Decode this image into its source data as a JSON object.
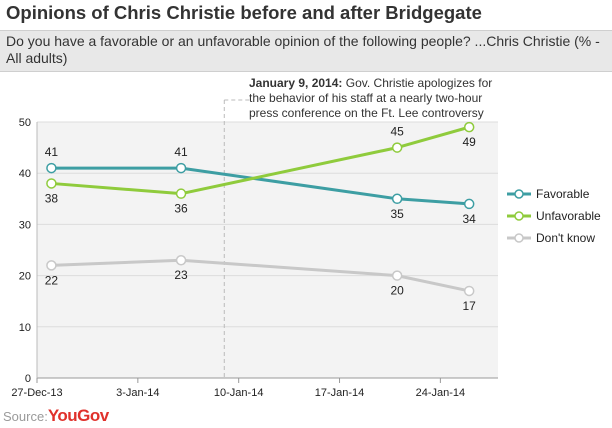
{
  "title": "Opinions of Chris Christie before and after Bridgegate",
  "subtitle": "Do you have a favorable or an unfavorable opinion of the following people? ...Chris Christie (% - All adults)",
  "source": {
    "label": "Source:",
    "brand": "YouGov"
  },
  "annotation": {
    "date": "January 9, 2014:",
    "text": "Gov. Christie apologizes for the behavior of his staff at a nearly two-hour press conference on the Ft. Lee controversy",
    "x": "2014-01-09"
  },
  "chart_data": {
    "type": "line",
    "x_dates": [
      "2013-12-28",
      "2014-01-06",
      "2014-01-21",
      "2014-01-26"
    ],
    "xticks": [
      {
        "label": "27-Dec-13",
        "date": "2013-12-27"
      },
      {
        "label": "3-Jan-14",
        "date": "2014-01-03"
      },
      {
        "label": "10-Jan-14",
        "date": "2014-01-10"
      },
      {
        "label": "17-Jan-14",
        "date": "2014-01-17"
      },
      {
        "label": "24-Jan-14",
        "date": "2014-01-24"
      }
    ],
    "ylim": [
      0,
      50
    ],
    "yticks": [
      0,
      10,
      20,
      30,
      40,
      50
    ],
    "grid": true,
    "legend_position": "right",
    "series": [
      {
        "name": "Favorable",
        "values": [
          41,
          41,
          35,
          34
        ],
        "color": "#3d9ea3",
        "label_pos": [
          "above",
          "above",
          "below",
          "below"
        ]
      },
      {
        "name": "Unfavorable",
        "values": [
          38,
          36,
          45,
          49
        ],
        "color": "#8fcb3c",
        "label_pos": [
          "below",
          "below",
          "above",
          "below"
        ]
      },
      {
        "name": "Don't know",
        "values": [
          22,
          23,
          20,
          17
        ],
        "color": "#c8c8c8",
        "label_pos": [
          "below",
          "below",
          "below",
          "below"
        ]
      }
    ]
  }
}
